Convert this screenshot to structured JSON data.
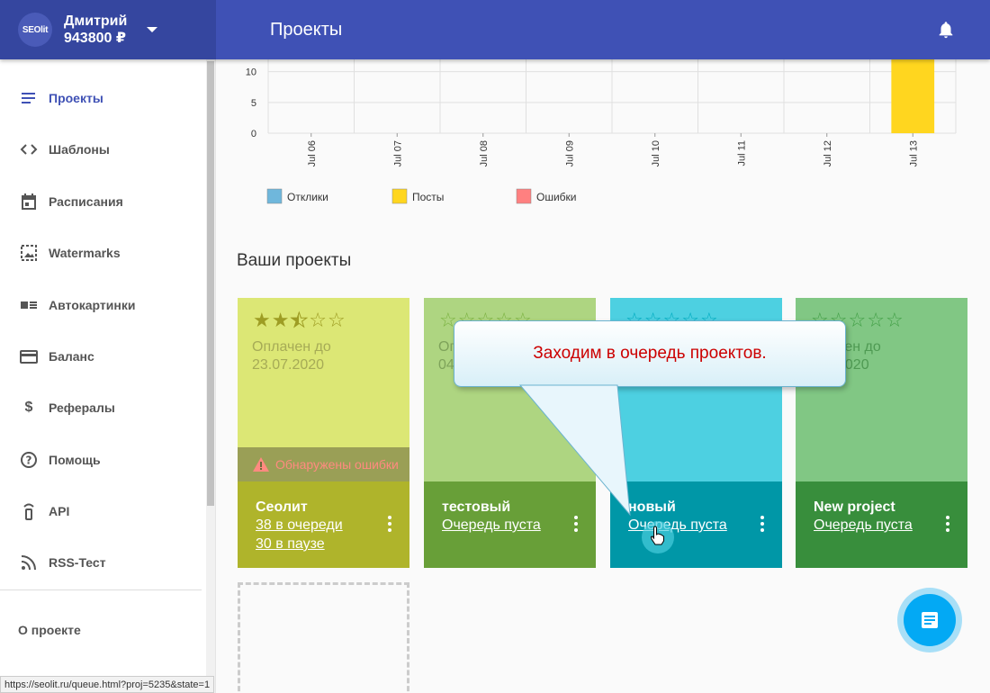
{
  "header": {
    "logo": "SEOlit",
    "user_name": "Дмитрий",
    "balance": "943800 ₽",
    "title": "Проекты"
  },
  "sidebar": {
    "items": [
      {
        "label": "Проекты",
        "icon": "list-icon"
      },
      {
        "label": "Шаблоны",
        "icon": "code-icon"
      },
      {
        "label": "Расписания",
        "icon": "calendar-icon"
      },
      {
        "label": "Watermarks",
        "icon": "image-icon"
      },
      {
        "label": "Автокартинки",
        "icon": "image-list-icon"
      },
      {
        "label": "Баланс",
        "icon": "credit-card-icon"
      },
      {
        "label": "Рефералы",
        "icon": "dollar-icon"
      },
      {
        "label": "Помощь",
        "icon": "help-icon"
      },
      {
        "label": "API",
        "icon": "api-icon"
      },
      {
        "label": "RSS-Тест",
        "icon": "rss-icon"
      }
    ],
    "about": "О проекте"
  },
  "chart_data": {
    "type": "bar",
    "categories": [
      "Jul 06",
      "Jul 07",
      "Jul 08",
      "Jul 09",
      "Jul 10",
      "Jul 11",
      "Jul 12",
      "Jul 13"
    ],
    "series": [
      {
        "name": "Отклики",
        "color": "#6fb7dc",
        "values": [
          0,
          0,
          0,
          0,
          0,
          0,
          0,
          0
        ]
      },
      {
        "name": "Посты",
        "color": "#ffd61f",
        "values": [
          0,
          0,
          0,
          0,
          0,
          0,
          0,
          12
        ]
      },
      {
        "name": "Ошибки",
        "color": "#ff8080",
        "values": [
          0,
          0,
          0,
          0,
          0,
          0,
          0,
          0
        ]
      }
    ],
    "y_ticks": [
      "0",
      "5",
      "10"
    ],
    "ylim": [
      0,
      12
    ],
    "grid": true,
    "legend": "bottom-left"
  },
  "section_title": "Ваши проекты",
  "projects": [
    {
      "name": "Сеолит",
      "stars": 2.5,
      "paid_label": "Оплачен до",
      "paid_date": "23.07.2020",
      "error": "Обнаружены ошибки",
      "link1": "38 в очереди",
      "link2": "30 в паузе",
      "top_color": "#dce775",
      "bottom_color": "#afb42b",
      "text_color": "#a6ab56",
      "star_color": "#9e9d24"
    },
    {
      "name": "тестовый",
      "stars": 0,
      "paid_label": "Оплачен до",
      "paid_date": "04",
      "link1": "Очередь пуста",
      "top_color": "#aed581",
      "bottom_color": "#689f38",
      "text_color": "#7ea35a",
      "star_color": "#7cb342"
    },
    {
      "name": "новый",
      "stars": 0,
      "link1": "Очередь пуста",
      "top_color": "#4dd0e1",
      "bottom_color": "#0097a7",
      "text_color": "#2a9dab",
      "star_color": "#00acc1"
    },
    {
      "name": "New project",
      "stars": 0,
      "paid_label": "чен до",
      "paid_date": "2020",
      "link1": "Очередь пуста",
      "top_color": "#81c784",
      "bottom_color": "#388e3c",
      "text_color": "#4f9a53",
      "star_color": "#43a047"
    }
  ],
  "callout": "Заходим в очередь проектов.",
  "status_url": "https://seolit.ru/queue.html?proj=5235&state=1"
}
